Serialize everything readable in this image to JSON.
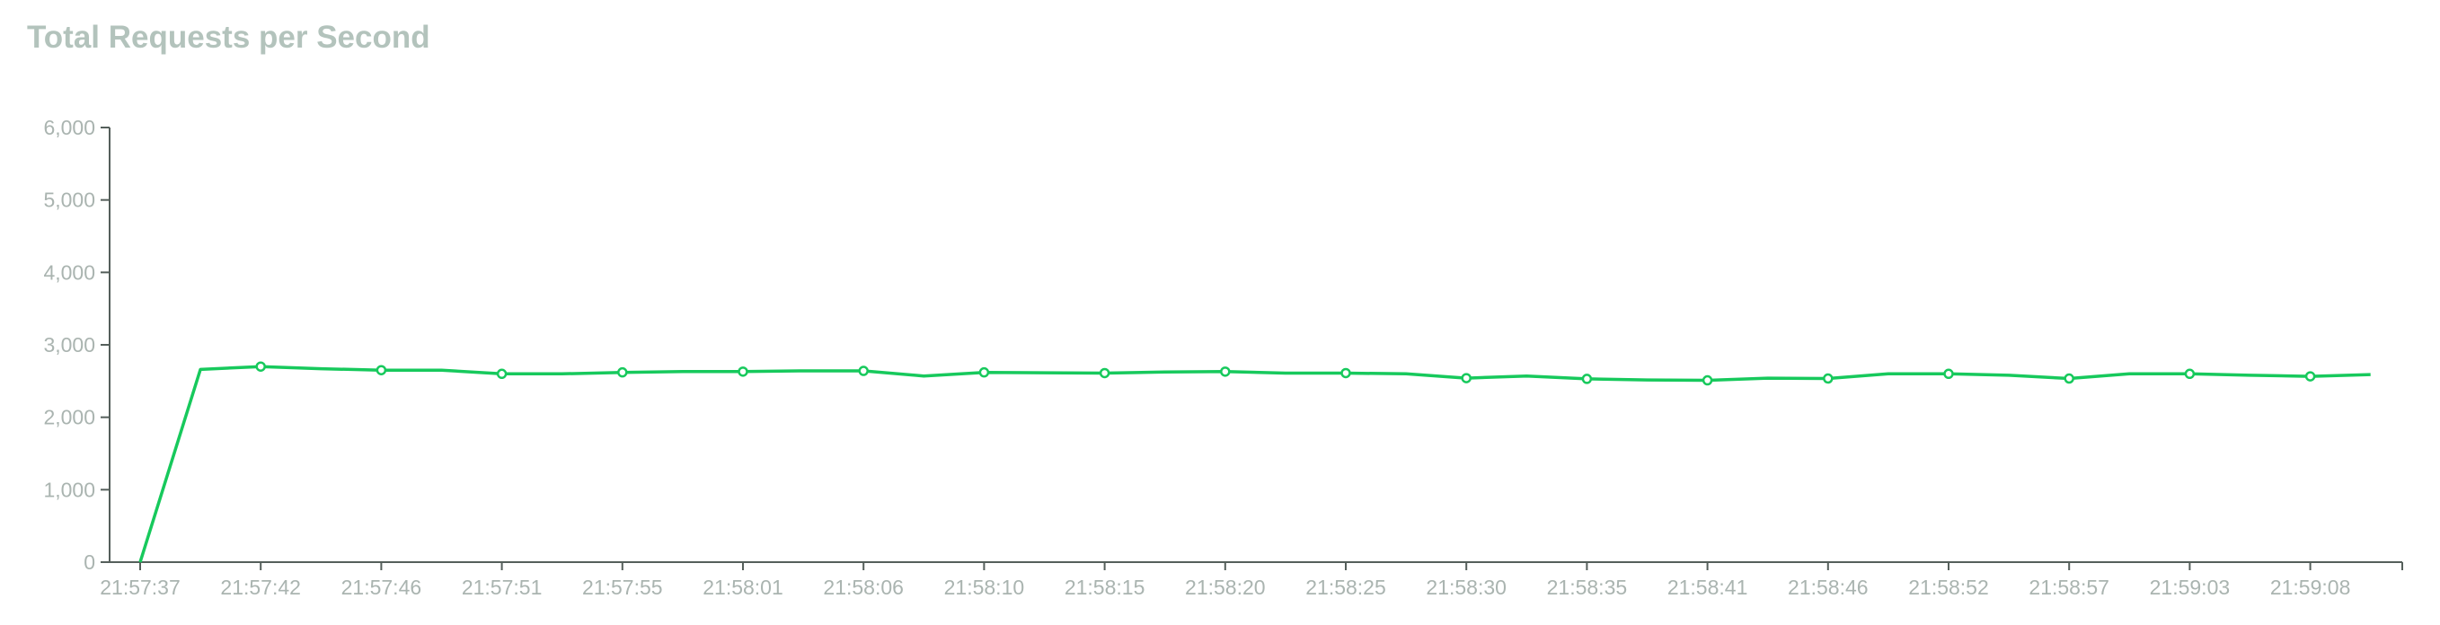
{
  "chart_data": {
    "type": "line",
    "title": "Total Requests per Second",
    "xlabel": "",
    "ylabel": "",
    "ylim": [
      0,
      6000
    ],
    "y_ticks": [
      0,
      1000,
      2000,
      3000,
      4000,
      5000,
      6000
    ],
    "y_tick_labels": [
      "0",
      "1,000",
      "2,000",
      "3,000",
      "4,000",
      "5,000",
      "6,000"
    ],
    "x_tick_labels": [
      "21:57:37",
      "21:57:42",
      "21:57:46",
      "21:57:51",
      "21:57:55",
      "21:58:01",
      "21:58:06",
      "21:58:10",
      "21:58:15",
      "21:58:20",
      "21:58:25",
      "21:58:30",
      "21:58:35",
      "21:58:41",
      "21:58:46",
      "21:58:52",
      "21:58:57",
      "21:59:03",
      "21:59:08"
    ],
    "grid": false,
    "legend": "none",
    "line_color": "#17c95c",
    "values": [
      0,
      2660,
      2700,
      2670,
      2650,
      2650,
      2600,
      2600,
      2620,
      2630,
      2630,
      2640,
      2640,
      2570,
      2620,
      2615,
      2610,
      2625,
      2630,
      2610,
      2610,
      2600,
      2540,
      2570,
      2530,
      2515,
      2510,
      2540,
      2535,
      2600,
      2600,
      2580,
      2535,
      2600,
      2600,
      2580,
      2565,
      2590
    ],
    "marked_points": [
      2,
      4,
      6,
      8,
      10,
      12,
      14,
      16,
      18,
      20,
      22,
      24,
      26,
      28,
      30,
      32,
      34,
      36
    ]
  }
}
